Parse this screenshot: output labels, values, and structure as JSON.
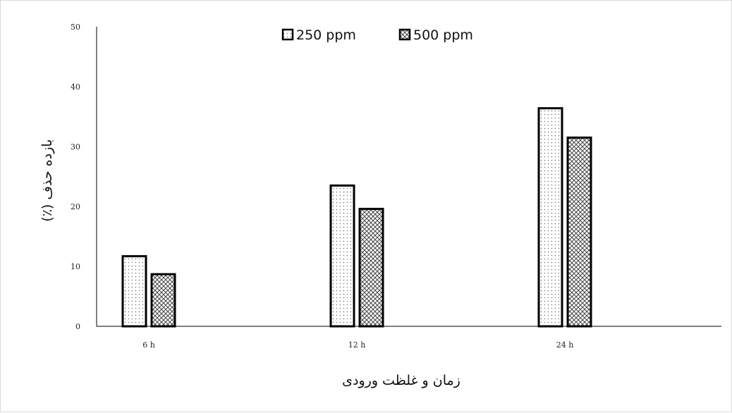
{
  "chart_data": {
    "type": "bar",
    "categories": [
      "6 h",
      "12 h",
      "24 h"
    ],
    "series": [
      {
        "name": "250 ppm",
        "values": [
          11.7,
          23.5,
          36.4
        ],
        "pattern": "dots"
      },
      {
        "name": "500 ppm",
        "values": [
          8.7,
          19.6,
          31.5
        ],
        "pattern": "crosshatch"
      }
    ],
    "ylim": [
      0,
      50
    ],
    "yticks": [
      0,
      10,
      20,
      30,
      40,
      50
    ],
    "xlabel": "زمان و غلظت ورودی",
    "ylabel": "بازده حذف (٪)",
    "legend_position": "top-center",
    "grid": false,
    "colors": {
      "bar_fill": "#ffffff",
      "bar_stroke": "#000000",
      "pattern": "#555555",
      "axis": "#000000"
    }
  }
}
